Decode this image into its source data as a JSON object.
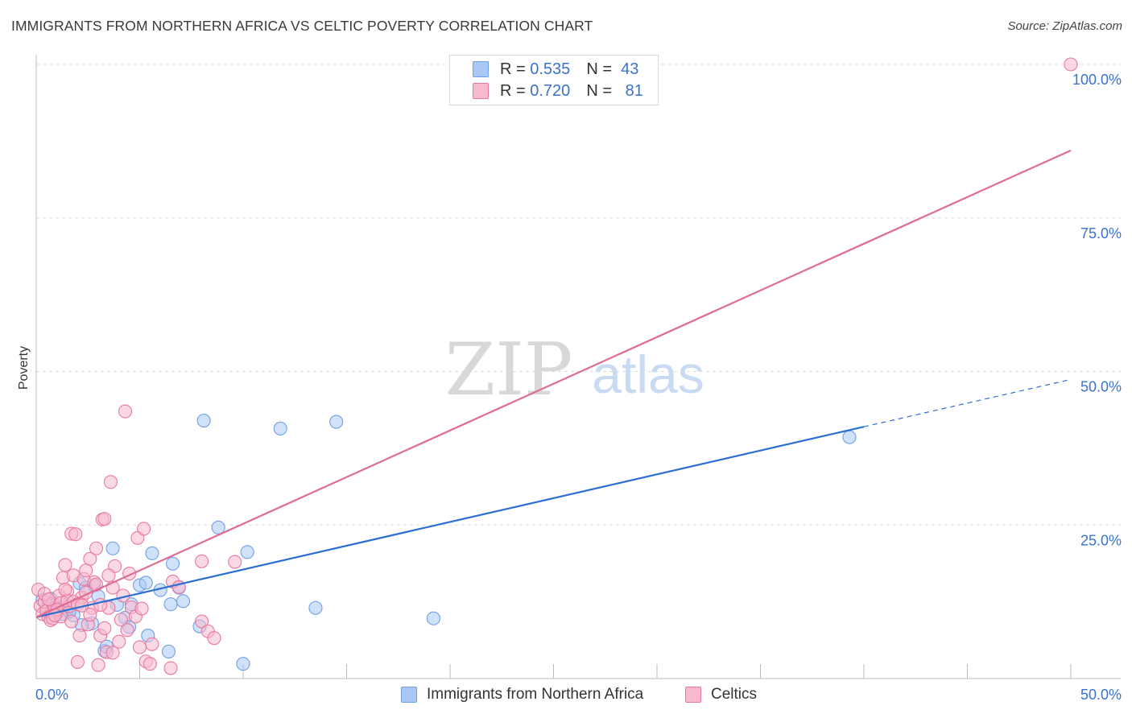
{
  "header": {
    "title": "IMMIGRANTS FROM NORTHERN AFRICA VS CELTIC POVERTY CORRELATION CHART",
    "source": "Source: ZipAtlas.com"
  },
  "watermark": {
    "zip": "ZIP",
    "atlas": "atlas"
  },
  "legend_top": {
    "rows": [
      {
        "r_label": "R =",
        "r_value": "0.535",
        "n_label": "N =",
        "n_value": "43",
        "color": "#a9c8f5"
      },
      {
        "r_label": "R =",
        "r_value": "0.720",
        "n_label": "N =",
        "n_value": "81",
        "color": "#f7b9cd"
      }
    ]
  },
  "legend_bottom": {
    "items": [
      {
        "label": "Immigrants from Northern Africa",
        "color": "#a9c8f5"
      },
      {
        "label": "Celtics",
        "color": "#f7b9cd"
      }
    ]
  },
  "chart_data": {
    "type": "scatter",
    "title": "IMMIGRANTS FROM NORTHERN AFRICA VS CELTIC POVERTY CORRELATION CHART",
    "xlabel": "",
    "ylabel": "Poverty",
    "xlim": [
      0,
      50
    ],
    "ylim": [
      0,
      100
    ],
    "x_tick_labels": [
      {
        "value": 0,
        "label": "0.0%"
      },
      {
        "value": 50,
        "label": "50.0%"
      }
    ],
    "y_tick_labels": [
      {
        "value": 25,
        "label": "25.0%"
      },
      {
        "value": 50,
        "label": "50.0%"
      },
      {
        "value": 75,
        "label": "75.0%"
      },
      {
        "value": 100,
        "label": "100.0%"
      }
    ],
    "series": [
      {
        "name": "Immigrants from Northern Africa",
        "color": "#6f9fe6",
        "fill": "#a9c8f5",
        "trend_color": "#2a6fd1",
        "trend": {
          "x0": 0,
          "y0": 10.0,
          "x1": 40,
          "y1": 41.0,
          "dashed_to_x": 50,
          "dashed_to_y": 48.7
        },
        "points": [
          [
            0.3,
            12.8
          ],
          [
            0.5,
            11.5
          ],
          [
            0.7,
            13.0
          ],
          [
            0.9,
            12.0
          ],
          [
            1.1,
            11.0
          ],
          [
            1.3,
            10.5
          ],
          [
            1.5,
            11.2
          ],
          [
            1.8,
            10.3
          ],
          [
            2.1,
            15.5
          ],
          [
            2.4,
            14.8
          ],
          [
            2.8,
            15.2
          ],
          [
            3.0,
            13.4
          ],
          [
            3.3,
            4.5
          ],
          [
            3.4,
            5.2
          ],
          [
            2.7,
            9.0
          ],
          [
            2.2,
            8.7
          ],
          [
            3.7,
            21.2
          ],
          [
            3.9,
            12.0
          ],
          [
            4.3,
            9.9
          ],
          [
            4.5,
            8.4
          ],
          [
            4.6,
            12.1
          ],
          [
            5.0,
            15.2
          ],
          [
            5.3,
            15.6
          ],
          [
            5.4,
            7.0
          ],
          [
            5.6,
            20.4
          ],
          [
            6.0,
            14.4
          ],
          [
            6.4,
            4.4
          ],
          [
            6.5,
            12.1
          ],
          [
            6.6,
            18.7
          ],
          [
            6.9,
            14.8
          ],
          [
            7.1,
            12.6
          ],
          [
            7.9,
            8.5
          ],
          [
            8.1,
            42.0
          ],
          [
            8.8,
            24.6
          ],
          [
            10.0,
            2.4
          ],
          [
            10.2,
            20.6
          ],
          [
            11.8,
            40.7
          ],
          [
            13.5,
            11.5
          ],
          [
            14.5,
            41.8
          ],
          [
            19.2,
            9.8
          ],
          [
            39.3,
            39.3
          ],
          [
            0.6,
            11.8
          ],
          [
            1.6,
            10.9
          ]
        ]
      },
      {
        "name": "Celtics",
        "color": "#e8799e",
        "fill": "#f7b9cd",
        "trend_color": "#e06c93",
        "trend": {
          "x0": 0,
          "y0": 10.0,
          "x1": 50,
          "y1": 86.0
        },
        "points": [
          [
            0.1,
            14.5
          ],
          [
            0.2,
            11.8
          ],
          [
            0.3,
            10.5
          ],
          [
            0.4,
            12.5
          ],
          [
            0.5,
            11.0
          ],
          [
            0.6,
            10.0
          ],
          [
            0.7,
            9.5
          ],
          [
            0.8,
            12.2
          ],
          [
            0.9,
            11.5
          ],
          [
            1.0,
            10.8
          ],
          [
            1.1,
            13.5
          ],
          [
            1.2,
            12.3
          ],
          [
            1.3,
            16.4
          ],
          [
            1.4,
            18.5
          ],
          [
            1.5,
            14.2
          ],
          [
            1.6,
            11.8
          ],
          [
            1.7,
            23.6
          ],
          [
            1.8,
            16.8
          ],
          [
            1.9,
            23.5
          ],
          [
            2.0,
            2.7
          ],
          [
            2.1,
            7.0
          ],
          [
            2.2,
            13.2
          ],
          [
            2.3,
            16.2
          ],
          [
            2.4,
            17.6
          ],
          [
            2.5,
            8.8
          ],
          [
            2.6,
            19.5
          ],
          [
            2.7,
            11.5
          ],
          [
            2.8,
            15.7
          ],
          [
            2.9,
            21.2
          ],
          [
            3.0,
            2.2
          ],
          [
            3.1,
            7.0
          ],
          [
            3.2,
            25.9
          ],
          [
            3.3,
            26.0
          ],
          [
            3.4,
            4.3
          ],
          [
            3.5,
            11.5
          ],
          [
            3.6,
            32.0
          ],
          [
            3.7,
            14.8
          ],
          [
            3.8,
            18.3
          ],
          [
            4.0,
            6.0
          ],
          [
            4.2,
            13.5
          ],
          [
            4.3,
            43.5
          ],
          [
            4.4,
            7.9
          ],
          [
            4.6,
            11.6
          ],
          [
            4.9,
            22.9
          ],
          [
            5.0,
            5.1
          ],
          [
            5.2,
            24.4
          ],
          [
            5.3,
            2.8
          ],
          [
            5.5,
            2.4
          ],
          [
            5.6,
            5.6
          ],
          [
            6.5,
            1.7
          ],
          [
            6.6,
            15.8
          ],
          [
            6.9,
            14.9
          ],
          [
            8.0,
            9.3
          ],
          [
            8.0,
            19.1
          ],
          [
            8.3,
            7.7
          ],
          [
            8.6,
            6.6
          ],
          [
            9.6,
            19.0
          ],
          [
            50.0,
            100.0
          ],
          [
            0.4,
            13.8
          ],
          [
            0.8,
            9.8
          ],
          [
            1.2,
            10.1
          ],
          [
            1.5,
            12.7
          ],
          [
            1.8,
            12.5
          ],
          [
            2.0,
            12.1
          ],
          [
            2.2,
            11.9
          ],
          [
            2.6,
            10.4
          ],
          [
            2.9,
            15.3
          ],
          [
            3.1,
            12.0
          ],
          [
            3.5,
            16.8
          ],
          [
            3.7,
            4.2
          ],
          [
            4.1,
            9.6
          ],
          [
            4.5,
            17.1
          ],
          [
            4.8,
            10.1
          ],
          [
            5.1,
            11.4
          ],
          [
            1.0,
            11.2
          ],
          [
            0.6,
            12.9
          ],
          [
            0.9,
            10.3
          ],
          [
            1.4,
            14.5
          ],
          [
            1.7,
            9.3
          ],
          [
            2.4,
            14.0
          ],
          [
            3.3,
            8.2
          ]
        ]
      }
    ]
  }
}
